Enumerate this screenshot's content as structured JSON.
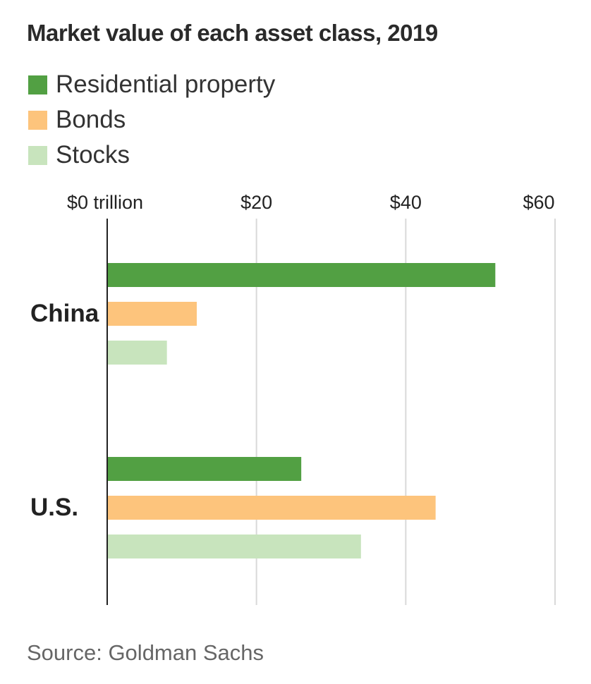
{
  "title": "Market value of each asset class, 2019",
  "source": "Source: Goldman Sachs",
  "chart_data": {
    "type": "bar",
    "orientation": "horizontal",
    "title": "Market value of each asset class, 2019",
    "categories": [
      "China",
      "U.S."
    ],
    "series": [
      {
        "name": "Residential property",
        "color": "#52a043",
        "values": [
          52,
          26
        ]
      },
      {
        "name": "Bonds",
        "color": "#fdc47c",
        "values": [
          12,
          44
        ]
      },
      {
        "name": "Stocks",
        "color": "#c8e4bd",
        "values": [
          8,
          34
        ]
      }
    ],
    "x_ticks": [
      "$0 trillion",
      "$20",
      "$40",
      "$60"
    ],
    "x_tick_values": [
      0,
      20,
      40,
      60
    ],
    "xlim": [
      0,
      60
    ],
    "grid": true,
    "legend_position": "top-left"
  }
}
